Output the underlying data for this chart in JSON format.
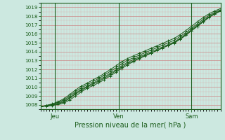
{
  "title": "",
  "xlabel": "Pression niveau de la mer( hPa )",
  "bg_color": "#cce8e0",
  "plot_bg_color": "#cce8e0",
  "grid_major_color": "#cc8888",
  "grid_minor_color": "#dd9999",
  "line_color": "#1a5c1a",
  "ylim": [
    1007.5,
    1019.5
  ],
  "xlim": [
    0,
    62
  ],
  "yticks": [
    1008,
    1009,
    1010,
    1011,
    1012,
    1013,
    1014,
    1015,
    1016,
    1017,
    1018,
    1019
  ],
  "xtick_positions": [
    5,
    27,
    52
  ],
  "xtick_labels": [
    "Jeu",
    "Ven",
    "Sam"
  ],
  "vline_positions": [
    5,
    27,
    52
  ],
  "x_base": [
    0,
    1,
    2,
    3,
    4,
    5,
    6,
    7,
    8,
    9,
    10,
    11,
    12,
    13,
    14,
    15,
    16,
    17,
    18,
    19,
    20,
    21,
    22,
    23,
    24,
    25,
    26,
    27,
    28,
    29,
    30,
    31,
    32,
    33,
    34,
    35,
    36,
    37,
    38,
    39,
    40,
    41,
    42,
    43,
    44,
    45,
    46,
    47,
    48,
    49,
    50,
    51,
    52,
    53,
    54,
    55,
    56,
    57,
    58,
    59,
    60,
    61,
    62
  ],
  "series": [
    [
      1007.8,
      1007.82,
      1007.85,
      1007.88,
      1007.92,
      1007.97,
      1008.02,
      1008.1,
      1008.2,
      1008.35,
      1008.55,
      1008.75,
      1009.0,
      1009.2,
      1009.45,
      1009.65,
      1009.85,
      1010.0,
      1010.15,
      1010.3,
      1010.5,
      1010.65,
      1010.85,
      1011.05,
      1011.25,
      1011.45,
      1011.65,
      1011.9,
      1012.1,
      1012.3,
      1012.5,
      1012.7,
      1012.85,
      1013.05,
      1013.2,
      1013.35,
      1013.5,
      1013.65,
      1013.8,
      1013.95,
      1014.1,
      1014.25,
      1014.4,
      1014.55,
      1014.7,
      1014.85,
      1015.0,
      1015.2,
      1015.4,
      1015.6,
      1015.85,
      1016.1,
      1016.35,
      1016.6,
      1016.85,
      1017.1,
      1017.35,
      1017.6,
      1017.85,
      1018.05,
      1018.25,
      1018.45,
      1018.6
    ],
    [
      1007.8,
      1007.83,
      1007.87,
      1007.91,
      1007.96,
      1008.02,
      1008.1,
      1008.2,
      1008.32,
      1008.5,
      1008.72,
      1008.95,
      1009.18,
      1009.4,
      1009.62,
      1009.8,
      1009.98,
      1010.15,
      1010.3,
      1010.48,
      1010.65,
      1010.82,
      1011.0,
      1011.2,
      1011.42,
      1011.62,
      1011.82,
      1012.05,
      1012.25,
      1012.45,
      1012.62,
      1012.8,
      1012.96,
      1013.12,
      1013.28,
      1013.42,
      1013.56,
      1013.7,
      1013.84,
      1013.98,
      1014.12,
      1014.26,
      1014.4,
      1014.54,
      1014.68,
      1014.82,
      1014.96,
      1015.16,
      1015.38,
      1015.6,
      1015.85,
      1016.1,
      1016.35,
      1016.6,
      1016.85,
      1017.1,
      1017.35,
      1017.6,
      1017.85,
      1018.05,
      1018.22,
      1018.4,
      1018.55
    ],
    [
      1007.8,
      1007.84,
      1007.89,
      1007.95,
      1008.01,
      1008.08,
      1008.17,
      1008.28,
      1008.42,
      1008.6,
      1008.82,
      1009.06,
      1009.3,
      1009.52,
      1009.72,
      1009.9,
      1010.08,
      1010.25,
      1010.42,
      1010.6,
      1010.78,
      1010.96,
      1011.15,
      1011.35,
      1011.55,
      1011.75,
      1011.95,
      1012.18,
      1012.4,
      1012.6,
      1012.78,
      1012.95,
      1013.1,
      1013.25,
      1013.4,
      1013.54,
      1013.68,
      1013.82,
      1013.96,
      1014.1,
      1014.24,
      1014.38,
      1014.52,
      1014.66,
      1014.8,
      1014.94,
      1015.08,
      1015.28,
      1015.5,
      1015.72,
      1015.97,
      1016.22,
      1016.47,
      1016.72,
      1016.97,
      1017.22,
      1017.47,
      1017.7,
      1017.93,
      1018.12,
      1018.3,
      1018.48,
      1018.63
    ],
    [
      1007.8,
      1007.85,
      1007.91,
      1007.98,
      1008.06,
      1008.15,
      1008.26,
      1008.4,
      1008.56,
      1008.75,
      1008.98,
      1009.22,
      1009.47,
      1009.7,
      1009.9,
      1010.08,
      1010.25,
      1010.42,
      1010.6,
      1010.78,
      1010.96,
      1011.14,
      1011.34,
      1011.55,
      1011.76,
      1011.96,
      1012.17,
      1012.4,
      1012.62,
      1012.82,
      1013.0,
      1013.16,
      1013.3,
      1013.45,
      1013.59,
      1013.73,
      1013.87,
      1014.01,
      1014.15,
      1014.29,
      1014.43,
      1014.57,
      1014.71,
      1014.85,
      1014.99,
      1015.13,
      1015.27,
      1015.47,
      1015.68,
      1015.9,
      1016.14,
      1016.38,
      1016.63,
      1016.88,
      1017.13,
      1017.38,
      1017.62,
      1017.85,
      1018.07,
      1018.25,
      1018.42,
      1018.58,
      1018.72
    ],
    [
      1007.8,
      1007.86,
      1007.93,
      1008.01,
      1008.1,
      1008.21,
      1008.34,
      1008.5,
      1008.68,
      1008.9,
      1009.14,
      1009.4,
      1009.65,
      1009.88,
      1010.08,
      1010.26,
      1010.43,
      1010.61,
      1010.79,
      1010.97,
      1011.15,
      1011.33,
      1011.54,
      1011.75,
      1011.97,
      1012.18,
      1012.4,
      1012.63,
      1012.85,
      1013.05,
      1013.22,
      1013.37,
      1013.52,
      1013.66,
      1013.8,
      1013.94,
      1014.08,
      1014.22,
      1014.36,
      1014.5,
      1014.64,
      1014.78,
      1014.92,
      1015.06,
      1015.2,
      1015.34,
      1015.48,
      1015.68,
      1015.9,
      1016.12,
      1016.36,
      1016.6,
      1016.85,
      1017.1,
      1017.35,
      1017.6,
      1017.82,
      1018.05,
      1018.25,
      1018.42,
      1018.58,
      1018.72,
      1018.85
    ]
  ]
}
